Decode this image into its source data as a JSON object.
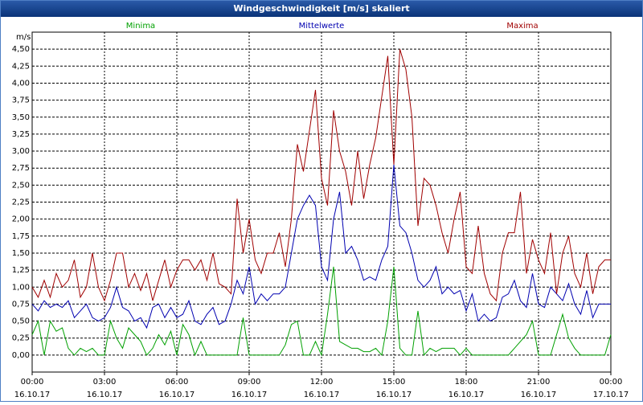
{
  "chart_data": {
    "type": "line",
    "title": "Windgeschwindigkeit [m/s] skaliert",
    "y_label": "m/s",
    "x": [
      0,
      0.25,
      0.5,
      0.75,
      1,
      1.25,
      1.5,
      1.75,
      2,
      2.25,
      2.5,
      2.75,
      3,
      3.25,
      3.5,
      3.75,
      4,
      4.25,
      4.5,
      4.75,
      5,
      5.25,
      5.5,
      5.75,
      6,
      6.25,
      6.5,
      6.75,
      7,
      7.25,
      7.5,
      7.75,
      8,
      8.25,
      8.5,
      8.75,
      9,
      9.25,
      9.5,
      9.75,
      10,
      10.25,
      10.5,
      10.75,
      11,
      11.25,
      11.5,
      11.75,
      12,
      12.25,
      12.5,
      12.75,
      13,
      13.25,
      13.5,
      13.75,
      14,
      14.25,
      14.5,
      14.75,
      15,
      15.25,
      15.5,
      15.75,
      16,
      16.25,
      16.5,
      16.75,
      17,
      17.25,
      17.5,
      17.75,
      18,
      18.25,
      18.5,
      18.75,
      19,
      19.25,
      19.5,
      19.75,
      20,
      20.25,
      20.5,
      20.75,
      21,
      21.25,
      21.5,
      21.75,
      22,
      22.25,
      22.5,
      22.75,
      23,
      23.25,
      23.5,
      23.75,
      24
    ],
    "series": [
      {
        "name": "Minima",
        "color": "#00a000",
        "values": [
          0.3,
          0.5,
          0.0,
          0.5,
          0.35,
          0.4,
          0.1,
          0.0,
          0.1,
          0.05,
          0.1,
          0.0,
          0.0,
          0.5,
          0.25,
          0.1,
          0.4,
          0.3,
          0.2,
          0.0,
          0.1,
          0.3,
          0.15,
          0.35,
          0.0,
          0.45,
          0.3,
          0.0,
          0.2,
          0.0,
          0.0,
          0.0,
          0.0,
          0.0,
          0.0,
          0.55,
          0.0,
          0.0,
          0.0,
          0.0,
          0.0,
          0.0,
          0.15,
          0.45,
          0.5,
          0.0,
          0.0,
          0.2,
          0.0,
          0.6,
          1.3,
          0.2,
          0.15,
          0.1,
          0.1,
          0.05,
          0.05,
          0.1,
          0.0,
          0.5,
          1.3,
          0.1,
          0.0,
          0.0,
          0.65,
          0.0,
          0.1,
          0.05,
          0.1,
          0.1,
          0.1,
          0.0,
          0.1,
          0.0,
          0.0,
          0.0,
          0.0,
          0.0,
          0.0,
          0.0,
          0.1,
          0.2,
          0.3,
          0.5,
          0.0,
          0.0,
          0.0,
          0.3,
          0.6,
          0.25,
          0.1,
          0.0,
          0.0,
          0.0,
          0.0,
          0.0,
          0.3
        ]
      },
      {
        "name": "Mittelwerte",
        "color": "#0000b0",
        "values": [
          0.75,
          0.65,
          0.8,
          0.7,
          0.75,
          0.7,
          0.8,
          0.55,
          0.65,
          0.75,
          0.55,
          0.5,
          0.55,
          0.7,
          1.0,
          0.7,
          0.65,
          0.5,
          0.55,
          0.4,
          0.7,
          0.75,
          0.55,
          0.7,
          0.55,
          0.6,
          0.8,
          0.5,
          0.45,
          0.6,
          0.7,
          0.45,
          0.5,
          0.75,
          1.1,
          0.9,
          1.3,
          0.75,
          0.9,
          0.8,
          0.9,
          0.9,
          1.0,
          1.5,
          2.0,
          2.2,
          2.35,
          2.2,
          1.3,
          1.1,
          2.0,
          2.4,
          1.5,
          1.6,
          1.4,
          1.1,
          1.15,
          1.1,
          1.4,
          1.6,
          2.8,
          1.9,
          1.8,
          1.5,
          1.1,
          1.0,
          1.1,
          1.3,
          0.9,
          1.0,
          0.9,
          0.95,
          0.65,
          0.9,
          0.5,
          0.6,
          0.5,
          0.55,
          0.85,
          0.9,
          1.1,
          0.8,
          0.7,
          1.2,
          0.75,
          0.7,
          1.0,
          0.9,
          0.8,
          1.05,
          0.75,
          0.6,
          0.95,
          0.55,
          0.75,
          0.75,
          0.75
        ]
      },
      {
        "name": "Maxima",
        "color": "#a00000",
        "values": [
          1.0,
          0.85,
          1.1,
          0.85,
          1.2,
          1.0,
          1.1,
          1.4,
          0.85,
          1.0,
          1.5,
          1.0,
          0.8,
          1.1,
          1.5,
          1.5,
          1.0,
          1.2,
          0.95,
          1.2,
          0.8,
          1.1,
          1.4,
          1.0,
          1.25,
          1.4,
          1.4,
          1.25,
          1.4,
          1.1,
          1.5,
          1.05,
          1.0,
          0.9,
          2.3,
          1.5,
          2.0,
          1.4,
          1.2,
          1.5,
          1.5,
          1.8,
          1.3,
          2.0,
          3.1,
          2.7,
          3.3,
          3.9,
          2.6,
          2.2,
          3.6,
          3.0,
          2.7,
          2.2,
          3.0,
          2.3,
          2.8,
          3.2,
          3.8,
          4.4,
          2.8,
          4.5,
          4.2,
          3.5,
          1.9,
          2.6,
          2.5,
          2.2,
          1.8,
          1.5,
          2.0,
          2.4,
          1.3,
          1.2,
          1.9,
          1.2,
          0.9,
          0.8,
          1.5,
          1.8,
          1.8,
          2.4,
          1.2,
          1.7,
          1.4,
          1.2,
          1.8,
          0.9,
          1.5,
          1.75,
          1.2,
          1.0,
          1.5,
          0.9,
          1.3,
          1.4,
          1.4
        ]
      }
    ],
    "xlim": [
      0,
      24
    ],
    "xticks": [
      {
        "value": 0,
        "label": "00:00"
      },
      {
        "value": 3,
        "label": "03:00"
      },
      {
        "value": 6,
        "label": "06:00"
      },
      {
        "value": 9,
        "label": "09:00"
      },
      {
        "value": 12,
        "label": "12:00"
      },
      {
        "value": 15,
        "label": "15:00"
      },
      {
        "value": 18,
        "label": "18:00"
      },
      {
        "value": 21,
        "label": "21:00"
      },
      {
        "value": 24,
        "label": "00:00"
      }
    ],
    "xtick_dates": [
      "16.10.17",
      "16.10.17",
      "16.10.17",
      "16.10.17",
      "16.10.17",
      "16.10.17",
      "16.10.17",
      "16.10.17",
      "17.10.17"
    ],
    "ylim": [
      -0.25,
      4.75
    ],
    "yticks": [
      {
        "value": 0,
        "label": "0,00"
      },
      {
        "value": 0.25,
        "label": "0,25"
      },
      {
        "value": 0.5,
        "label": "0,50"
      },
      {
        "value": 0.75,
        "label": "0,75"
      },
      {
        "value": 1,
        "label": "1,00"
      },
      {
        "value": 1.25,
        "label": "1,25"
      },
      {
        "value": 1.5,
        "label": "1,50"
      },
      {
        "value": 1.75,
        "label": "1,75"
      },
      {
        "value": 2,
        "label": "2,00"
      },
      {
        "value": 2.25,
        "label": "2,25"
      },
      {
        "value": 2.5,
        "label": "2,50"
      },
      {
        "value": 2.75,
        "label": "2,75"
      },
      {
        "value": 3,
        "label": "3,00"
      },
      {
        "value": 3.25,
        "label": "3,25"
      },
      {
        "value": 3.5,
        "label": "3,50"
      },
      {
        "value": 3.75,
        "label": "3,75"
      },
      {
        "value": 4,
        "label": "4,00"
      },
      {
        "value": 4.25,
        "label": "4,25"
      },
      {
        "value": 4.5,
        "label": "4,50"
      }
    ],
    "grid": true
  }
}
